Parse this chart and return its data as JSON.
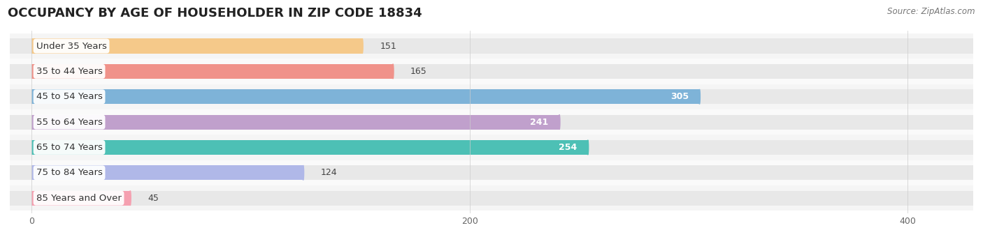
{
  "title": "OCCUPANCY BY AGE OF HOUSEHOLDER IN ZIP CODE 18834",
  "source": "Source: ZipAtlas.com",
  "categories": [
    "Under 35 Years",
    "35 to 44 Years",
    "45 to 54 Years",
    "55 to 64 Years",
    "65 to 74 Years",
    "75 to 84 Years",
    "85 Years and Over"
  ],
  "values": [
    151,
    165,
    305,
    241,
    254,
    124,
    45
  ],
  "bar_colors": [
    "#F5C98A",
    "#F0928A",
    "#7EB3D8",
    "#C0A0CC",
    "#4DC0B5",
    "#B0B8E8",
    "#F5A0B0"
  ],
  "bar_bg_color": "#E8E8E8",
  "xlim": [
    -10,
    430
  ],
  "xticks": [
    0,
    200,
    400
  ],
  "title_fontsize": 13,
  "label_fontsize": 9.5,
  "value_fontsize": 9,
  "bg_color": "#FFFFFF",
  "bar_height": 0.58,
  "row_bg_even": "#F5F5F5",
  "row_bg_odd": "#FAFAFA",
  "label_bg": "#FFFFFF",
  "value_threshold": 200
}
